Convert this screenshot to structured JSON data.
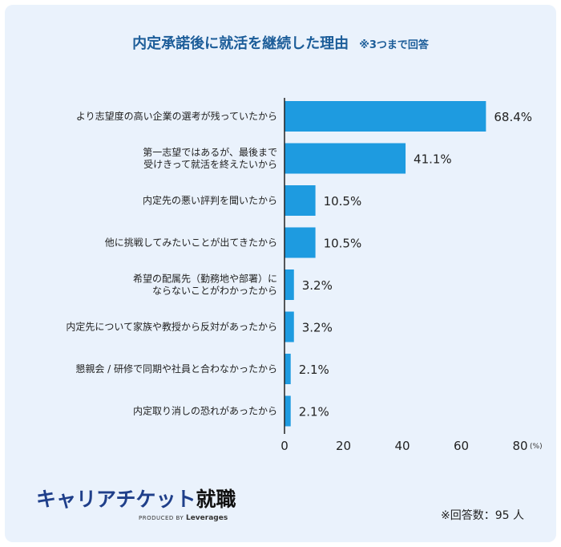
{
  "header": {
    "title": "内定承諾後に就活を継続した理由",
    "note": "※3つまで回答"
  },
  "chart_data": {
    "type": "bar",
    "orientation": "horizontal",
    "categories": [
      "より志望度の高い企業の選考が残っていたから",
      "第一志望ではあるが、最後まで\n受けきって就活を終えたいから",
      "内定先の悪い評判を聞いたから",
      "他に挑戦してみたいことが出てきたから",
      "希望の配属先（勤務地や部署）に\nならないことがわかったから",
      "内定先について家族や教授から反対があったから",
      "懇親会 / 研修で同期や社員と合わなかったから",
      "内定取り消しの恐れがあったから"
    ],
    "values": [
      68.4,
      41.1,
      10.5,
      10.5,
      3.2,
      3.2,
      2.1,
      2.1
    ],
    "value_labels": [
      "68.4%",
      "41.1%",
      "10.5%",
      "10.5%",
      "3.2%",
      "3.2%",
      "2.1%",
      "2.1%"
    ],
    "xlim": [
      0,
      80
    ],
    "xticks": [
      "0",
      "20",
      "40",
      "60",
      "80"
    ],
    "xunit": "(%)",
    "bar_color": "#1e9be0",
    "grid": false
  },
  "footer": {
    "brand_main": "キャリアチケット",
    "brand_accent": "就職",
    "produced_by": "PRODUCED BY",
    "produced_company": "Leverages",
    "respondents": "※回答数：95 人"
  }
}
